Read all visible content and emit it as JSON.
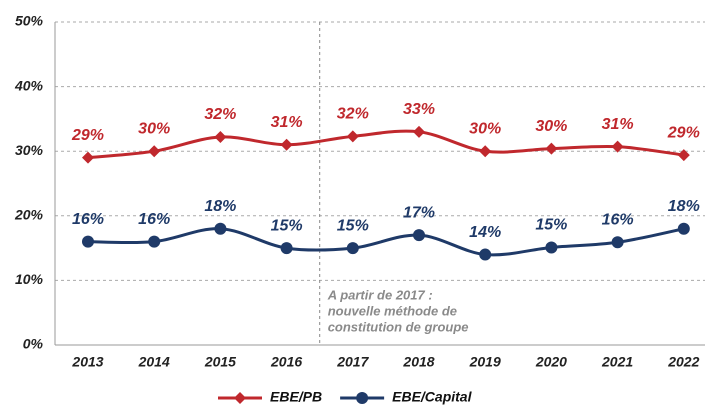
{
  "chart_data": {
    "type": "line",
    "categories": [
      "2013",
      "2014",
      "2015",
      "2016",
      "2017",
      "2018",
      "2019",
      "2020",
      "2021",
      "2022"
    ],
    "series": [
      {
        "name": "EBE/PB",
        "color": "#c0282d",
        "marker": "diamond",
        "values": [
          29,
          30,
          32.2,
          31,
          32.3,
          33,
          30,
          30.4,
          30.7,
          29.4
        ],
        "value_labels": [
          "29%",
          "30%",
          "32%",
          "31%",
          "32%",
          "33%",
          "30%",
          "30%",
          "31%",
          "29%"
        ]
      },
      {
        "name": "EBE/Capital",
        "color": "#1f3a68",
        "marker": "circle",
        "values": [
          16,
          16,
          18,
          15,
          15,
          17,
          14,
          15.1,
          15.9,
          18
        ],
        "value_labels": [
          "16%",
          "16%",
          "18%",
          "15%",
          "15%",
          "17%",
          "14%",
          "15%",
          "16%",
          "18%"
        ]
      }
    ],
    "ylim": [
      0,
      50
    ],
    "yticks": [
      {
        "value": 0,
        "label": "0%"
      },
      {
        "value": 10,
        "label": "10%"
      },
      {
        "value": 20,
        "label": "20%"
      },
      {
        "value": 30,
        "label": "30%"
      },
      {
        "value": 40,
        "label": "40%"
      },
      {
        "value": 50,
        "label": "50%"
      }
    ],
    "grid": true,
    "legend": "bottom",
    "annotation": [
      "A partir de 2017 :",
      "nouvelle méthode de",
      "constitution de groupe"
    ]
  }
}
